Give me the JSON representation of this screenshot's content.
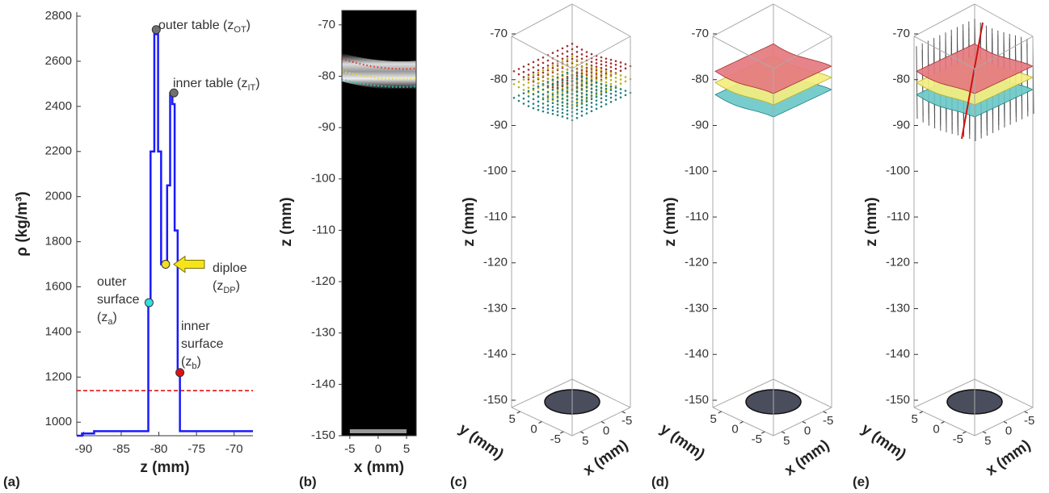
{
  "chart_data": [
    {
      "type": "line",
      "panel": "(a)",
      "xlabel": "z (mm)",
      "ylabel": "ρ (kg/m³)",
      "color": "#1a1aff",
      "x": [
        -90.9,
        -90.2,
        -90.2,
        -88.6,
        -88.6,
        -81.4,
        -81.4,
        -81.1,
        -81.1,
        -80.6,
        -80.6,
        -80.1,
        -80.1,
        -79.7,
        -79.7,
        -78.9,
        -78.9,
        -78.5,
        -78.5,
        -78.2,
        -78.2,
        -77.9,
        -77.9,
        -77.5,
        -77.5,
        -77.2,
        -77.2,
        -67.5
      ],
      "values": [
        940,
        940,
        950,
        950,
        960,
        960,
        1530,
        1530,
        2200,
        2200,
        2720,
        2720,
        2200,
        2200,
        1700,
        1700,
        2050,
        2050,
        2460,
        2460,
        2410,
        2410,
        1850,
        1850,
        1220,
        1220,
        960,
        960
      ],
      "xlim": [
        -90.9,
        -67.5
      ],
      "xticks": [
        -90,
        -85,
        -80,
        -75,
        -70
      ],
      "ylim": [
        940,
        2818
      ],
      "yticks": [
        1000,
        1200,
        1400,
        1600,
        1800,
        2000,
        2200,
        2400,
        2600,
        2800
      ],
      "threshold": {
        "value": 1140,
        "color": "#e00000"
      },
      "points": [
        {
          "x": -80.35,
          "y": 2740,
          "color": "#707070",
          "label": {
            "lines": [],
            "pre": "outer table (z",
            "sub": "OT",
            "post": ")"
          }
        },
        {
          "x": -78.0,
          "y": 2460,
          "color": "#707070",
          "label": {
            "lines": [],
            "pre": "inner table (z",
            "sub": "IT",
            "post": ")"
          }
        },
        {
          "x": -79.1,
          "y": 1700,
          "color": "#f0e020",
          "label": {
            "lines": [
              "diploe"
            ],
            "pre": "(z",
            "sub": "DP",
            "post": ")"
          }
        },
        {
          "x": -81.3,
          "y": 1530,
          "color": "#30e0e0",
          "label": {
            "lines": [
              "outer",
              "surface"
            ],
            "pre": "(z",
            "sub": "a",
            "post": ")"
          }
        },
        {
          "x": -77.2,
          "y": 1220,
          "color": "#e01010",
          "label": {
            "lines": [
              "inner",
              "surface"
            ],
            "pre": "(z",
            "sub": "b",
            "post": ")"
          }
        }
      ]
    },
    {
      "type": "image",
      "panel": "(b)",
      "xlabel": "x (mm)",
      "ylabel": "z (mm)",
      "xlim": [
        -6.4,
        6.7
      ],
      "xticks": [
        -5,
        0,
        5
      ],
      "ylim": [
        -150,
        -67.2
      ],
      "yticks": [
        -70,
        -80,
        -90,
        -100,
        -110,
        -120,
        -130,
        -140,
        -150
      ]
    },
    {
      "type": "box3d",
      "style": "points",
      "panel": "(c)",
      "zlabel": "z (mm)",
      "ylabel": "y (mm)",
      "xlabel": "x (mm)",
      "zlim": [
        -150,
        -70
      ],
      "zticks": [
        -70,
        -80,
        -90,
        -100,
        -110,
        -120,
        -130,
        -140,
        -150
      ],
      "ylim": [
        7,
        -7
      ],
      "yticks": [
        5,
        0,
        -5
      ],
      "xlim": [
        7,
        -7
      ],
      "xticks": [
        5,
        0,
        -5
      ]
    },
    {
      "type": "box3d",
      "style": "surfaces",
      "panel": "(d)",
      "zlabel": "z (mm)",
      "ylabel": "y (mm)",
      "xlabel": "x (mm)",
      "zlim": [
        -150,
        -70
      ],
      "zticks": [
        -70,
        -80,
        -90,
        -100,
        -110,
        -120,
        -130,
        -140,
        -150
      ],
      "ylim": [
        7,
        -7
      ],
      "yticks": [
        5,
        0,
        -5
      ],
      "xlim": [
        7,
        -7
      ],
      "xticks": [
        5,
        0,
        -5
      ]
    },
    {
      "type": "box3d",
      "style": "normals",
      "panel": "(e)",
      "zlabel": "z (mm)",
      "ylabel": "y (mm)",
      "xlabel": "x (mm)",
      "zlim": [
        -150,
        -70
      ],
      "zticks": [
        -70,
        -80,
        -90,
        -100,
        -110,
        -120,
        -130,
        -140,
        -150
      ],
      "ylim": [
        7,
        -7
      ],
      "yticks": [
        5,
        0,
        -5
      ],
      "xlim": [
        7,
        -7
      ],
      "xticks": [
        5,
        0,
        -5
      ]
    }
  ]
}
